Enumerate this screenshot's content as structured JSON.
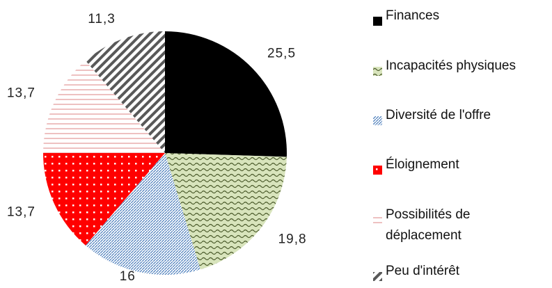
{
  "chart_data": {
    "type": "pie",
    "categories": [
      "Finances",
      "Incapacités physiques",
      "Diversité de l'offre",
      "Éloignement",
      "Possibilités de déplacement",
      "Peu d'intérêt"
    ],
    "values": [
      25.5,
      19.8,
      16,
      13.7,
      13.7,
      11.3
    ],
    "value_labels": [
      "25,5",
      "19,8",
      "16",
      "13,7",
      "13,7",
      "11,3"
    ],
    "colors": [
      "#000000",
      "#c4d79b",
      "#4f81bd",
      "#ff0000",
      "#e6b9b8",
      "#595959"
    ]
  }
}
